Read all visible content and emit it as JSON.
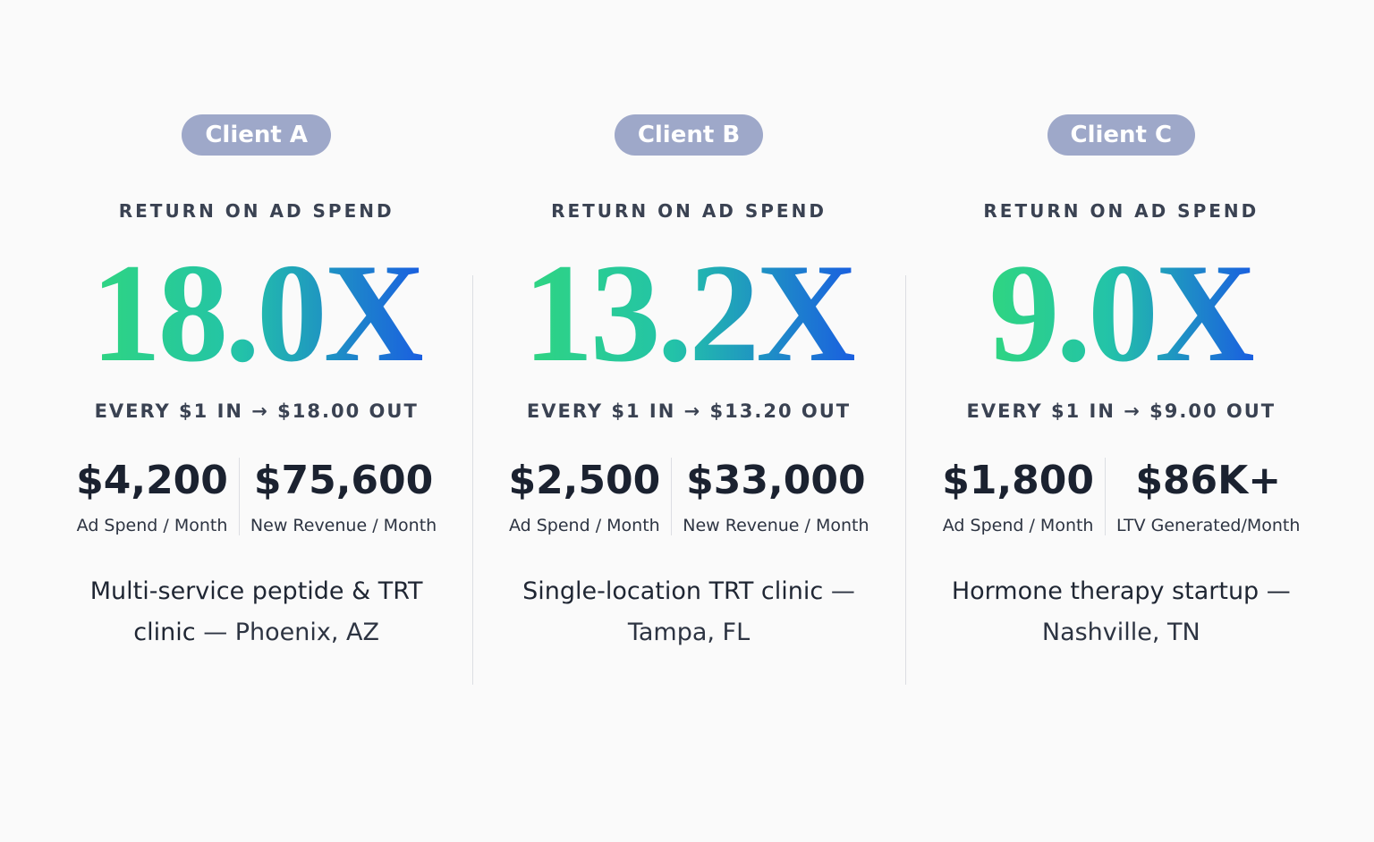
{
  "clients": [
    {
      "badge": "Client A",
      "label": "RETURN ON AD SPEND",
      "roas": "18.0X",
      "ratio": "EVERY $1 IN → $18.00 OUT",
      "metrics": [
        {
          "value": "$4,200",
          "label": "Ad Spend / Month"
        },
        {
          "value": "$75,600",
          "label": "New Revenue / Month"
        }
      ],
      "description": "Multi-service peptide & TRT clinic",
      "location": "— Phoenix, AZ"
    },
    {
      "badge": "Client B",
      "label": "RETURN ON AD SPEND",
      "roas": "13.2X",
      "ratio": "EVERY $1 IN → $13.20 OUT",
      "metrics": [
        {
          "value": "$2,500",
          "label": "Ad Spend / Month"
        },
        {
          "value": "$33,000",
          "label": "New Revenue / Month"
        }
      ],
      "description": "Single-location TRT clinic",
      "location": "— Tampa, FL"
    },
    {
      "badge": "Client C",
      "label": "RETURN ON AD SPEND",
      "roas": "9.0X",
      "ratio": "EVERY $1 IN → $9.00 OUT",
      "metrics": [
        {
          "value": "$1,800",
          "label": "Ad Spend / Month"
        },
        {
          "value": "$86K+",
          "label": "LTV Generated/Month"
        }
      ],
      "description": "Hormone therapy startup —",
      "location": "Nashville, TN"
    }
  ]
}
